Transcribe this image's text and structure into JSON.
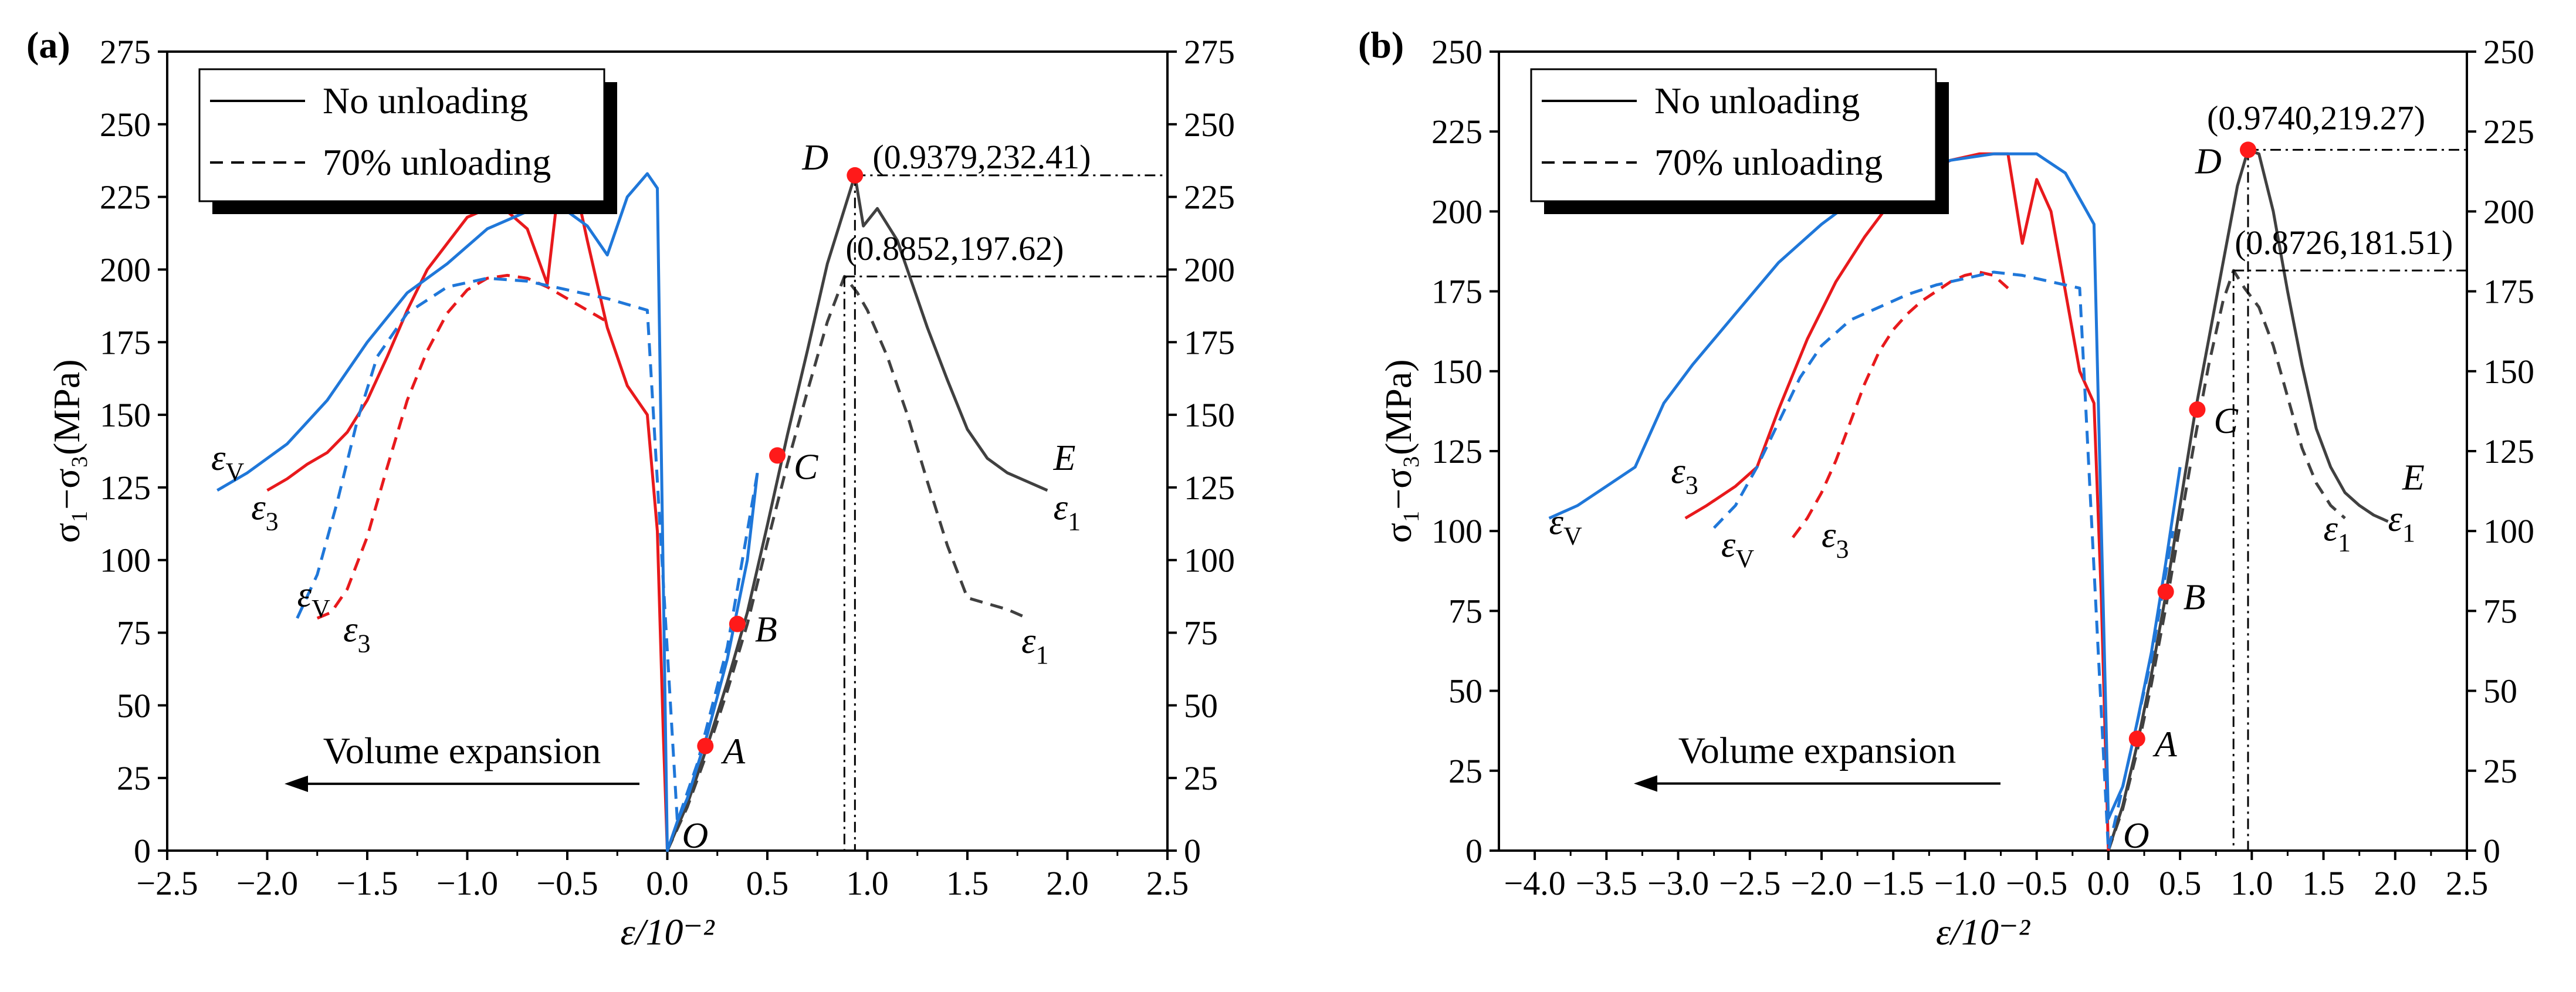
{
  "chart_data": [
    {
      "type": "line",
      "panel": "(a)",
      "xlabel": "ε/10⁻²",
      "ylabel": "σ₁−σ₃(MPa)",
      "xlim": [
        -2.5,
        2.5
      ],
      "ylim": [
        0,
        275
      ],
      "xticks": [
        "−2.5",
        "−2.0",
        "−1.5",
        "−1.0",
        "−0.5",
        "0.0",
        "0.5",
        "1.0",
        "1.5",
        "2.0",
        "2.5"
      ],
      "xtick_values": [
        -2.5,
        -2.0,
        -1.5,
        -1.0,
        -0.5,
        0.0,
        0.5,
        1.0,
        1.5,
        2.0,
        2.5
      ],
      "yticks": [
        "0",
        "25",
        "50",
        "75",
        "100",
        "125",
        "150",
        "175",
        "200",
        "225",
        "250",
        "275"
      ],
      "ytick_values": [
        0,
        25,
        50,
        75,
        100,
        125,
        150,
        175,
        200,
        225,
        250,
        275
      ],
      "legend": {
        "position": "top-left",
        "entries": [
          {
            "label": "No unloading",
            "style": "solid"
          },
          {
            "label": "70% unloading",
            "style": "dashed"
          }
        ]
      },
      "annotations": {
        "arrow_text": "Volume expansion",
        "peak_solid": "(0.9379,232.41)",
        "peak_dashed": "(0.8852,197.62)",
        "peak_solid_xy": [
          0.9379,
          232.41
        ],
        "peak_dashed_xy": [
          0.8852,
          197.62
        ]
      },
      "points": [
        {
          "label": "O",
          "x": 0.0,
          "y": 0.0
        },
        {
          "label": "A",
          "x": 0.19,
          "y": 36
        },
        {
          "label": "B",
          "x": 0.35,
          "y": 78
        },
        {
          "label": "C",
          "x": 0.55,
          "y": 136
        },
        {
          "label": "D",
          "x": 0.9379,
          "y": 232.41
        }
      ],
      "curve_labels": [
        {
          "text": "εV",
          "x": -2.28,
          "y": 131
        },
        {
          "text": "ε3",
          "x": -2.08,
          "y": 114
        },
        {
          "text": "εV",
          "x": -1.85,
          "y": 84
        },
        {
          "text": "ε3",
          "x": -1.62,
          "y": 72
        },
        {
          "text": "E",
          "x": 1.93,
          "y": 131
        },
        {
          "text": "ε1",
          "x": 1.93,
          "y": 114
        },
        {
          "text": "ε1",
          "x": 1.77,
          "y": 68
        }
      ],
      "series": [
        {
          "name": "ε1 No unloading",
          "color": "#404040",
          "dash": false,
          "x": [
            0,
            0.05,
            0.1,
            0.2,
            0.3,
            0.4,
            0.5,
            0.6,
            0.7,
            0.8,
            0.9379,
            0.98,
            1.05,
            1.15,
            1.3,
            1.4,
            1.5,
            1.6,
            1.7,
            1.8,
            1.9
          ],
          "y": [
            0,
            8,
            16,
            36,
            58,
            82,
            112,
            143,
            172,
            202,
            232.41,
            215,
            221,
            210,
            180,
            162,
            145,
            135,
            130,
            127,
            124
          ]
        },
        {
          "name": "ε1 70% unloading",
          "color": "#404040",
          "dash": true,
          "x": [
            0,
            0.1,
            0.2,
            0.3,
            0.4,
            0.5,
            0.6,
            0.7,
            0.8,
            0.8852,
            0.95,
            1.0,
            1.1,
            1.2,
            1.3,
            1.4,
            1.5,
            1.6,
            1.7,
            1.8
          ],
          "y": [
            0,
            15,
            34,
            55,
            78,
            106,
            133,
            158,
            182,
            197.62,
            192,
            186,
            170,
            150,
            127,
            105,
            87,
            85,
            83,
            80
          ]
        },
        {
          "name": "ε3 No unloading",
          "color": "#e8191c",
          "dash": false,
          "x": [
            -2.0,
            -1.9,
            -1.8,
            -1.7,
            -1.6,
            -1.5,
            -1.4,
            -1.3,
            -1.2,
            -1.0,
            -0.9,
            -0.8,
            -0.7,
            -0.6,
            -0.55,
            -0.5,
            -0.45,
            -0.4,
            -0.3,
            -0.2,
            -0.1,
            -0.05,
            -0.02,
            0
          ],
          "y": [
            124,
            128,
            133,
            137,
            144,
            155,
            170,
            186,
            200,
            218,
            221,
            220,
            214,
            195,
            225,
            233,
            226,
            210,
            180,
            160,
            150,
            110,
            40,
            0
          ]
        },
        {
          "name": "ε3 70% unloading",
          "color": "#e8191c",
          "dash": true,
          "x": [
            -1.75,
            -1.68,
            -1.6,
            -1.5,
            -1.4,
            -1.3,
            -1.2,
            -1.1,
            -1.0,
            -0.9,
            -0.8,
            -0.7,
            -0.6,
            -0.5,
            -0.4,
            -0.3
          ],
          "y": [
            80,
            82,
            90,
            108,
            132,
            155,
            172,
            185,
            193,
            197,
            198,
            197,
            194,
            190,
            186,
            182
          ]
        },
        {
          "name": "εV No unloading",
          "color": "#1f77d9",
          "dash": false,
          "x": [
            -2.25,
            -2.1,
            -1.9,
            -1.7,
            -1.5,
            -1.3,
            -1.1,
            -0.9,
            -0.7,
            -0.5,
            -0.4,
            -0.3,
            -0.2,
            -0.1,
            -0.05,
            0,
            0.05,
            0.1,
            0.2,
            0.3,
            0.4,
            0.45
          ],
          "y": [
            124,
            130,
            140,
            155,
            175,
            192,
            202,
            214,
            220,
            220,
            215,
            205,
            225,
            233,
            228,
            0,
            10,
            18,
            40,
            66,
            100,
            130
          ]
        },
        {
          "name": "εV 70% unloading",
          "color": "#1f77d9",
          "dash": true,
          "x": [
            -1.85,
            -1.75,
            -1.65,
            -1.55,
            -1.45,
            -1.3,
            -1.1,
            -0.9,
            -0.7,
            -0.5,
            -0.3,
            -0.1,
            0.05,
            0.15,
            0.3,
            0.45
          ],
          "y": [
            80,
            95,
            120,
            148,
            170,
            185,
            194,
            197,
            196,
            193,
            190,
            186,
            10,
            30,
            70,
            130
          ]
        }
      ]
    },
    {
      "type": "line",
      "panel": "(b)",
      "xlabel": "ε/10⁻²",
      "ylabel": "σ₁−σ₃(MPa)",
      "xlim": [
        -4.25,
        2.5
      ],
      "ylim": [
        0,
        250
      ],
      "xticks": [
        "−4.0",
        "−3.5",
        "−3.0",
        "−2.5",
        "−2.0",
        "−1.5",
        "−1.0",
        "−0.5",
        "0.0",
        "0.5",
        "1.0",
        "1.5",
        "2.0",
        "2.5"
      ],
      "xtick_values": [
        -4.0,
        -3.5,
        -3.0,
        -2.5,
        -2.0,
        -1.5,
        -1.0,
        -0.5,
        0.0,
        0.5,
        1.0,
        1.5,
        2.0,
        2.5
      ],
      "yticks": [
        "0",
        "25",
        "50",
        "75",
        "100",
        "125",
        "150",
        "175",
        "200",
        "225",
        "250"
      ],
      "ytick_values": [
        0,
        25,
        50,
        75,
        100,
        125,
        150,
        175,
        200,
        225,
        250
      ],
      "legend": {
        "position": "top-left",
        "entries": [
          {
            "label": "No unloading",
            "style": "solid"
          },
          {
            "label": "70% unloading",
            "style": "dashed"
          }
        ]
      },
      "annotations": {
        "arrow_text": "Volume expansion",
        "peak_solid": "(0.9740,219.27)",
        "peak_dashed": "(0.8726,181.51)",
        "peak_solid_xy": [
          0.974,
          219.27
        ],
        "peak_dashed_xy": [
          0.8726,
          181.51
        ]
      },
      "points": [
        {
          "label": "O",
          "x": 0.0,
          "y": 0.0
        },
        {
          "label": "A",
          "x": 0.2,
          "y": 35
        },
        {
          "label": "B",
          "x": 0.4,
          "y": 81
        },
        {
          "label": "C",
          "x": 0.62,
          "y": 138
        },
        {
          "label": "D",
          "x": 0.974,
          "y": 219.27
        }
      ],
      "curve_labels": [
        {
          "text": "εV",
          "x": -3.9,
          "y": 99
        },
        {
          "text": "ε3",
          "x": -3.05,
          "y": 115
        },
        {
          "text": "εV",
          "x": -2.7,
          "y": 92
        },
        {
          "text": "ε3",
          "x": -2.0,
          "y": 95
        },
        {
          "text": "E",
          "x": 2.05,
          "y": 113
        },
        {
          "text": "ε1",
          "x": 1.5,
          "y": 97
        },
        {
          "text": "ε1",
          "x": 1.95,
          "y": 100
        }
      ],
      "series": [
        {
          "name": "ε1 No unloading",
          "color": "#404040",
          "dash": false,
          "x": [
            0,
            0.1,
            0.2,
            0.3,
            0.4,
            0.5,
            0.6,
            0.7,
            0.8,
            0.9,
            0.974,
            1.05,
            1.15,
            1.25,
            1.35,
            1.45,
            1.55,
            1.65,
            1.75,
            1.85,
            1.95
          ],
          "y": [
            0,
            14,
            33,
            55,
            80,
            108,
            136,
            160,
            184,
            208,
            219.27,
            218,
            200,
            175,
            152,
            132,
            120,
            112,
            108,
            105,
            103
          ]
        },
        {
          "name": "ε1 70% unloading",
          "color": "#404040",
          "dash": true,
          "x": [
            0,
            0.1,
            0.2,
            0.3,
            0.4,
            0.5,
            0.6,
            0.7,
            0.8,
            0.8726,
            0.95,
            1.05,
            1.15,
            1.25,
            1.35,
            1.45,
            1.55,
            1.65
          ],
          "y": [
            0,
            13,
            31,
            52,
            76,
            102,
            128,
            152,
            172,
            181.51,
            176,
            170,
            158,
            142,
            126,
            115,
            108,
            104
          ]
        },
        {
          "name": "ε3 No unloading",
          "color": "#e8191c",
          "dash": false,
          "x": [
            -2.95,
            -2.8,
            -2.6,
            -2.45,
            -2.3,
            -2.1,
            -1.9,
            -1.7,
            -1.5,
            -1.3,
            -1.1,
            -0.9,
            -0.7,
            -0.6,
            -0.5,
            -0.4,
            -0.3,
            -0.2,
            -0.1,
            -0.05,
            0
          ],
          "y": [
            104,
            108,
            114,
            120,
            138,
            160,
            178,
            192,
            204,
            212,
            216,
            218,
            218,
            190,
            210,
            200,
            175,
            150,
            140,
            80,
            0
          ]
        },
        {
          "name": "ε3 70% unloading",
          "color": "#e8191c",
          "dash": true,
          "x": [
            -2.2,
            -2.1,
            -2.0,
            -1.9,
            -1.8,
            -1.7,
            -1.6,
            -1.5,
            -1.4,
            -1.3,
            -1.2,
            -1.1,
            -1.0,
            -0.9,
            -0.8,
            -0.7
          ],
          "y": [
            98,
            104,
            112,
            122,
            134,
            146,
            156,
            163,
            168,
            172,
            175,
            178,
            180,
            181,
            180,
            176
          ]
        },
        {
          "name": "εV No unloading",
          "color": "#1f77d9",
          "dash": false,
          "x": [
            -3.9,
            -3.7,
            -3.5,
            -3.3,
            -3.1,
            -2.9,
            -2.6,
            -2.3,
            -2.0,
            -1.7,
            -1.4,
            -1.1,
            -0.8,
            -0.5,
            -0.3,
            -0.2,
            -0.1,
            0,
            0.1,
            0.2,
            0.3,
            0.4,
            0.5
          ],
          "y": [
            104,
            108,
            114,
            120,
            140,
            152,
            168,
            184,
            196,
            206,
            212,
            216,
            218,
            218,
            212,
            204,
            196,
            10,
            20,
            40,
            62,
            90,
            120
          ]
        },
        {
          "name": "εV 70% unloading",
          "color": "#1f77d9",
          "dash": true,
          "x": [
            -2.75,
            -2.6,
            -2.45,
            -2.3,
            -2.15,
            -2.0,
            -1.8,
            -1.6,
            -1.4,
            -1.2,
            -1.0,
            -0.8,
            -0.6,
            -0.4,
            -0.2,
            0,
            0.15,
            0.3,
            0.45
          ],
          "y": [
            101,
            108,
            120,
            134,
            148,
            158,
            166,
            170,
            174,
            177,
            179,
            181,
            180,
            178,
            176,
            0,
            30,
            60,
            100
          ]
        }
      ]
    }
  ]
}
